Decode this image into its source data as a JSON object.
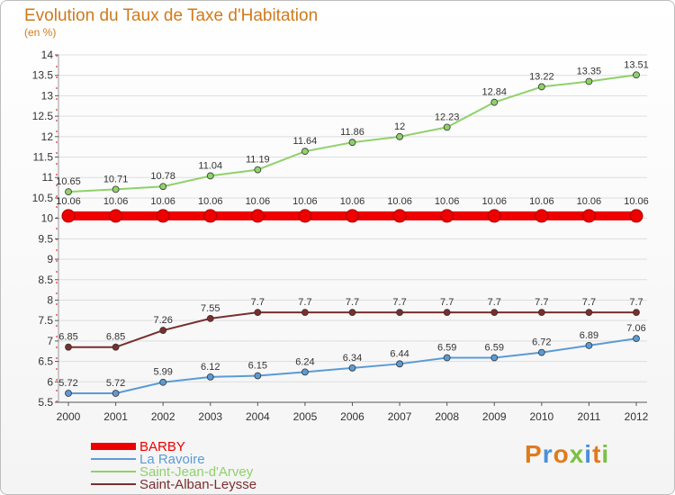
{
  "title": "Evolution du Taux de Taxe d'Habitation",
  "subtitle": "(en %)",
  "brand": "Proxiti",
  "colors": {
    "title": "#d07a1c",
    "grid": "#dddddd",
    "axis": "#555555"
  },
  "chart_data": {
    "type": "line",
    "title": "Evolution du Taux de Taxe d'Habitation",
    "ylabel": "(en %)",
    "xlabel": "",
    "ylim": [
      5.5,
      14
    ],
    "yticks": [
      5.5,
      6,
      6.5,
      7,
      7.5,
      8,
      8.5,
      9,
      9.5,
      10,
      10.5,
      11,
      11.5,
      12,
      12.5,
      13,
      13.5,
      14
    ],
    "ytick_labels": [
      "5.5",
      "6",
      "6.5",
      "7",
      "7.5",
      "8",
      "8.5",
      "9",
      "9.5",
      "10",
      "10.5",
      "11",
      "11.5",
      "12",
      "12.5",
      "13",
      "13.5",
      "14"
    ],
    "grid": true,
    "legend_position": "bottom-left",
    "x": [
      "2000",
      "2001",
      "2002",
      "2003",
      "2004",
      "2005",
      "2006",
      "2007",
      "2008",
      "2009",
      "2010",
      "2011",
      "2012"
    ],
    "series": [
      {
        "name": "BARBY",
        "color": "#ee0000",
        "bold": true,
        "values": [
          10.06,
          10.06,
          10.06,
          10.06,
          10.06,
          10.06,
          10.06,
          10.06,
          10.06,
          10.06,
          10.06,
          10.06,
          10.06
        ],
        "labels": [
          "10.06",
          "10.06",
          "10.06",
          "10.06",
          "10.06",
          "10.06",
          "10.06",
          "10.06",
          "10.06",
          "10.06",
          "10.06",
          "10.06",
          "10.06"
        ]
      },
      {
        "name": "La Ravoire",
        "color": "#5b9bd5",
        "bold": false,
        "values": [
          5.72,
          5.72,
          5.99,
          6.12,
          6.15,
          6.24,
          6.34,
          6.44,
          6.59,
          6.59,
          6.72,
          6.89,
          7.06
        ],
        "labels": [
          "5.72",
          "5.72",
          "5.99",
          "6.12",
          "6.15",
          "6.24",
          "6.34",
          "6.44",
          "6.59",
          "6.59",
          "6.72",
          "6.89",
          "7.06"
        ]
      },
      {
        "name": "Saint-Jean-d'Arvey",
        "color": "#8fd16a",
        "bold": false,
        "values": [
          10.65,
          10.71,
          10.78,
          11.04,
          11.19,
          11.64,
          11.86,
          12,
          12.23,
          12.84,
          13.22,
          13.35,
          13.51
        ],
        "labels": [
          "10.65",
          "10.71",
          "10.78",
          "11.04",
          "11.19",
          "11.64",
          "11.86",
          "12",
          "12.23",
          "12.84",
          "13.22",
          "13.35",
          "13.51"
        ]
      },
      {
        "name": "Saint-Alban-Leysse",
        "color": "#7a2e2e",
        "bold": false,
        "values": [
          6.85,
          6.85,
          7.26,
          7.55,
          7.7,
          7.7,
          7.7,
          7.7,
          7.7,
          7.7,
          7.7,
          7.7,
          7.7
        ],
        "labels": [
          "6.85",
          "6.85",
          "7.26",
          "7.55",
          "7.7",
          "7.7",
          "7.7",
          "7.7",
          "7.7",
          "7.7",
          "7.7",
          "7.7",
          "7.7"
        ]
      }
    ]
  }
}
